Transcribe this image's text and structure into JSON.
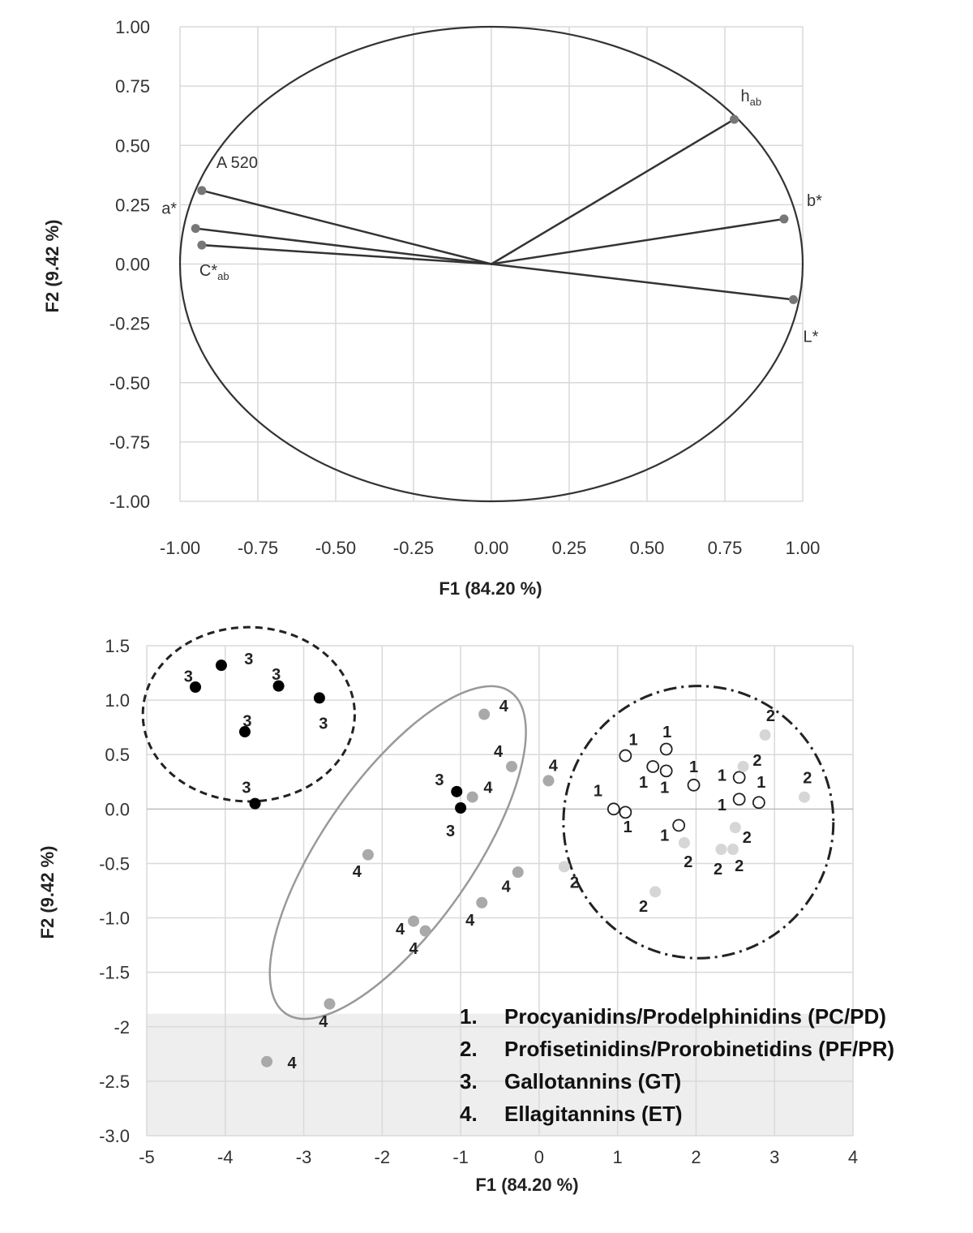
{
  "chart_data": [
    {
      "type": "scatter",
      "subtype": "pca-correlation-circle",
      "title": "",
      "xlabel": "F1 (84.20 %)",
      "ylabel": "F2 (9.42 %)",
      "xlim": [
        -1.0,
        1.0
      ],
      "ylim": [
        -1.0,
        1.0
      ],
      "xticks": [
        "-1.00",
        "-0.75",
        "-0.50",
        "-0.25",
        "0.00",
        "0.25",
        "0.50",
        "0.75",
        "1.00"
      ],
      "yticks": [
        "1.00",
        "0.75",
        "0.50",
        "0.25",
        "0.00",
        "-0.25",
        "-0.50",
        "-0.75",
        "-1.00"
      ],
      "grid": true,
      "unit_circle": true,
      "variables": [
        {
          "label": "A 520",
          "sub": "",
          "x": -0.93,
          "y": 0.31
        },
        {
          "label": "a*",
          "sub": "",
          "x": -0.95,
          "y": 0.15
        },
        {
          "label": "C*",
          "sub": "ab",
          "x": -0.93,
          "y": 0.08
        },
        {
          "label": "h",
          "sub": "ab",
          "x": 0.78,
          "y": 0.61
        },
        {
          "label": "b*",
          "sub": "",
          "x": 0.94,
          "y": 0.19
        },
        {
          "label": "L*",
          "sub": "",
          "x": 0.97,
          "y": -0.15
        }
      ],
      "colors": {
        "vector": "#333333",
        "marker": "#777777",
        "circle": "#333333"
      }
    },
    {
      "type": "scatter",
      "subtype": "pca-score-plot",
      "title": "",
      "xlabel": "F1 (84.20 %)",
      "ylabel": "F2 (9.42 %)",
      "xlim": [
        -5,
        4
      ],
      "ylim": [
        -3.0,
        1.5
      ],
      "xticks": [
        "-5",
        "-4",
        "-3",
        "-2",
        "-1",
        "0",
        "1",
        "2",
        "3",
        "4"
      ],
      "yticks": [
        "1.5",
        "1.0",
        "0.5",
        "0.0",
        "-0.5",
        "-1.0",
        "-1.5",
        "-2",
        "-2.5",
        "-3.0"
      ],
      "grid": true,
      "legend": {
        "placement": "bottom-right",
        "items": [
          {
            "num": "1.",
            "text": "Procyanidins/Prodelphinidins (PC/PD)"
          },
          {
            "num": "2.",
            "text": "Profisetinidins/Prorobinetidins (PF/PR)"
          },
          {
            "num": "3.",
            "text": "Gallotannins (GT)"
          },
          {
            "num": "4.",
            "text": "Ellagitannins (ET)"
          }
        ]
      },
      "series": [
        {
          "group": "1",
          "style": "open",
          "color": "#222222",
          "points": [
            {
              "x": 1.1,
              "y": 0.49
            },
            {
              "x": 1.45,
              "y": 0.39
            },
            {
              "x": 1.62,
              "y": 0.55
            },
            {
              "x": 1.62,
              "y": 0.35
            },
            {
              "x": 1.97,
              "y": 0.22
            },
            {
              "x": 0.95,
              "y": 0.0
            },
            {
              "x": 1.1,
              "y": -0.03
            },
            {
              "x": 1.78,
              "y": -0.15
            },
            {
              "x": 2.55,
              "y": 0.29
            },
            {
              "x": 2.55,
              "y": 0.09
            },
            {
              "x": 2.8,
              "y": 0.06
            }
          ]
        },
        {
          "group": "2",
          "style": "light",
          "color": "#d6d6d6",
          "points": [
            {
              "x": 2.88,
              "y": 0.68
            },
            {
              "x": 2.6,
              "y": 0.39
            },
            {
              "x": 3.38,
              "y": 0.11
            },
            {
              "x": 2.5,
              "y": -0.17
            },
            {
              "x": 1.85,
              "y": -0.31
            },
            {
              "x": 2.32,
              "y": -0.37
            },
            {
              "x": 2.47,
              "y": -0.37
            },
            {
              "x": 0.32,
              "y": -0.53
            },
            {
              "x": 1.48,
              "y": -0.76
            }
          ]
        },
        {
          "group": "3",
          "style": "filled",
          "color": "#000000",
          "points": [
            {
              "x": -4.05,
              "y": 1.32
            },
            {
              "x": -4.38,
              "y": 1.12
            },
            {
              "x": -3.32,
              "y": 1.13
            },
            {
              "x": -2.8,
              "y": 1.02
            },
            {
              "x": -3.75,
              "y": 0.71
            },
            {
              "x": -3.62,
              "y": 0.05
            },
            {
              "x": -1.05,
              "y": 0.16
            },
            {
              "x": -1.0,
              "y": 0.01
            }
          ]
        },
        {
          "group": "4",
          "style": "gray",
          "color": "#a9a9a9",
          "points": [
            {
              "x": -0.7,
              "y": 0.87
            },
            {
              "x": -0.35,
              "y": 0.39
            },
            {
              "x": 0.12,
              "y": 0.26
            },
            {
              "x": -0.85,
              "y": 0.11
            },
            {
              "x": -2.18,
              "y": -0.42
            },
            {
              "x": -0.27,
              "y": -0.58
            },
            {
              "x": -0.73,
              "y": -0.86
            },
            {
              "x": -1.6,
              "y": -1.03
            },
            {
              "x": -1.45,
              "y": -1.12
            },
            {
              "x": -2.67,
              "y": -1.79
            },
            {
              "x": -3.47,
              "y": -2.32
            }
          ]
        }
      ],
      "labels": [
        {
          "text": "3",
          "x": -3.7,
          "y": 1.38
        },
        {
          "text": "3",
          "x": -4.47,
          "y": 1.22
        },
        {
          "text": "3",
          "x": -3.35,
          "y": 1.24
        },
        {
          "text": "3",
          "x": -2.75,
          "y": 0.79
        },
        {
          "text": "3",
          "x": -3.72,
          "y": 0.81
        },
        {
          "text": "3",
          "x": -3.73,
          "y": 0.2
        },
        {
          "text": "3",
          "x": -1.27,
          "y": 0.27
        },
        {
          "text": "3",
          "x": -1.13,
          "y": -0.2
        },
        {
          "text": "4",
          "x": -0.45,
          "y": 0.95
        },
        {
          "text": "4",
          "x": -0.52,
          "y": 0.53
        },
        {
          "text": "4",
          "x": 0.18,
          "y": 0.4
        },
        {
          "text": "4",
          "x": -0.65,
          "y": 0.2
        },
        {
          "text": "4",
          "x": -2.32,
          "y": -0.57
        },
        {
          "text": "4",
          "x": -0.42,
          "y": -0.71
        },
        {
          "text": "4",
          "x": -0.88,
          "y": -1.02
        },
        {
          "text": "4",
          "x": -1.77,
          "y": -1.1
        },
        {
          "text": "4",
          "x": -1.6,
          "y": -1.28
        },
        {
          "text": "4",
          "x": -2.75,
          "y": -1.95
        },
        {
          "text": "4",
          "x": -3.15,
          "y": -2.33
        },
        {
          "text": "1",
          "x": 1.2,
          "y": 0.64
        },
        {
          "text": "1",
          "x": 1.63,
          "y": 0.71
        },
        {
          "text": "1",
          "x": 1.97,
          "y": 0.39
        },
        {
          "text": "1",
          "x": 1.33,
          "y": 0.25
        },
        {
          "text": "1",
          "x": 1.6,
          "y": 0.2
        },
        {
          "text": "1",
          "x": 0.75,
          "y": 0.17
        },
        {
          "text": "1",
          "x": 1.13,
          "y": -0.16
        },
        {
          "text": "1",
          "x": 1.6,
          "y": -0.24
        },
        {
          "text": "1",
          "x": 2.33,
          "y": 0.31
        },
        {
          "text": "1",
          "x": 2.33,
          "y": 0.04
        },
        {
          "text": "1",
          "x": 2.83,
          "y": 0.25
        },
        {
          "text": "2",
          "x": 2.95,
          "y": 0.86
        },
        {
          "text": "2",
          "x": 2.78,
          "y": 0.45
        },
        {
          "text": "2",
          "x": 3.42,
          "y": 0.29
        },
        {
          "text": "2",
          "x": 2.65,
          "y": -0.26
        },
        {
          "text": "2",
          "x": 1.9,
          "y": -0.48
        },
        {
          "text": "2",
          "x": 2.28,
          "y": -0.55
        },
        {
          "text": "2",
          "x": 2.55,
          "y": -0.52
        },
        {
          "text": "2",
          "x": 0.45,
          "y": -0.67
        },
        {
          "text": "2",
          "x": 1.33,
          "y": -0.89
        }
      ],
      "groupings": [
        {
          "name": "GT",
          "stroke": "#222222",
          "dash": "dashed",
          "cx": -3.7,
          "cy": 0.87,
          "rx": 1.35,
          "ry": 0.8,
          "rotation_deg": 0
        },
        {
          "name": "ET",
          "stroke": "#999999",
          "dash": "solid",
          "cx": -1.8,
          "cy": -0.4,
          "rx": 2.05,
          "ry": 0.78,
          "rotation_deg": -55
        },
        {
          "name": "PC/PD PF/PR",
          "stroke": "#222222",
          "dash": "dash-dot",
          "cx": 2.03,
          "cy": -0.12,
          "rx": 1.72,
          "ry": 1.25,
          "rotation_deg": 0
        }
      ],
      "shaded_region": {
        "x0": -5,
        "x1": 4,
        "y0": -3.0,
        "y1": -1.88,
        "color": "#eeeeee"
      }
    }
  ]
}
